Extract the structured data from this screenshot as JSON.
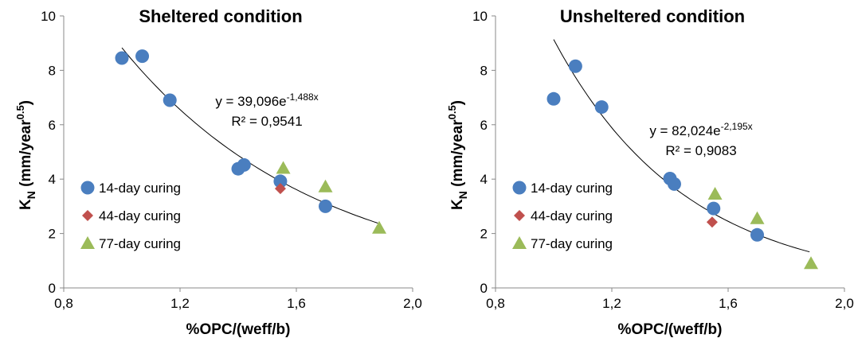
{
  "chart_data": [
    {
      "type": "scatter",
      "title": "Sheltered condition",
      "xlabel": "%OPC/(weff/b)",
      "ylabel_parts": [
        "K",
        "N",
        " (mm/year",
        "0.5",
        ")"
      ],
      "xlim": [
        0.8,
        2.0
      ],
      "ylim": [
        0,
        10
      ],
      "xticks": [
        {
          "value": 0.8,
          "label": "0,8"
        },
        {
          "value": 1.2,
          "label": "1,2"
        },
        {
          "value": 1.6,
          "label": "1,6"
        },
        {
          "value": 2.0,
          "label": "2,0"
        }
      ],
      "yticks": [
        0,
        2,
        4,
        6,
        8,
        10
      ],
      "legend": "lower left",
      "series": [
        {
          "name": "14-day curing",
          "color": "#4a7ebf",
          "marker": "circle",
          "x": [
            1.0,
            1.07,
            1.165,
            1.4,
            1.42,
            1.545,
            1.7
          ],
          "values": [
            8.45,
            8.52,
            6.9,
            4.38,
            4.52,
            3.92,
            3.0
          ]
        },
        {
          "name": "44-day curing",
          "color": "#c0504d",
          "marker": "diamond",
          "x": [
            1.545
          ],
          "values": [
            3.65
          ]
        },
        {
          "name": "77-day curing",
          "color": "#9bbb59",
          "marker": "triangle",
          "x": [
            1.555,
            1.7,
            1.885
          ],
          "values": [
            4.4,
            3.72,
            2.2
          ]
        }
      ],
      "trend": {
        "a": 39.096,
        "b": -1.488,
        "x_range": [
          1.0,
          1.88
        ]
      },
      "equation_parts": [
        "y = 39,096e",
        "-1,488x"
      ],
      "r2_label": "R² = 0,9541"
    },
    {
      "type": "scatter",
      "title": "Unsheltered condition",
      "xlabel": "%OPC/(weff/b)",
      "ylabel_parts": [
        "K",
        "N",
        " (mm/year",
        "0.5",
        ")"
      ],
      "xlim": [
        0.8,
        2.0
      ],
      "ylim": [
        0,
        10
      ],
      "xticks": [
        {
          "value": 0.8,
          "label": "0,8"
        },
        {
          "value": 1.2,
          "label": "1,2"
        },
        {
          "value": 1.6,
          "label": "1,6"
        },
        {
          "value": 2.0,
          "label": "2,0"
        }
      ],
      "yticks": [
        0,
        2,
        4,
        6,
        8,
        10
      ],
      "legend": "lower left",
      "series": [
        {
          "name": "14-day curing",
          "color": "#4a7ebf",
          "marker": "circle",
          "x": [
            1.0,
            1.075,
            1.165,
            1.4,
            1.415,
            1.55,
            1.7
          ],
          "values": [
            6.95,
            8.15,
            6.65,
            4.02,
            3.82,
            2.92,
            1.95
          ]
        },
        {
          "name": "44-day curing",
          "color": "#c0504d",
          "marker": "diamond",
          "x": [
            1.545
          ],
          "values": [
            2.42
          ]
        },
        {
          "name": "77-day curing",
          "color": "#9bbb59",
          "marker": "triangle",
          "x": [
            1.555,
            1.7,
            1.885
          ],
          "values": [
            3.45,
            2.55,
            0.9
          ]
        }
      ],
      "trend": {
        "a": 82.024,
        "b": -2.195,
        "x_range": [
          1.0,
          1.88
        ]
      },
      "equation_parts": [
        "y = 82,024e",
        "-2,195x"
      ],
      "r2_label": "R² = 0,9083"
    }
  ]
}
